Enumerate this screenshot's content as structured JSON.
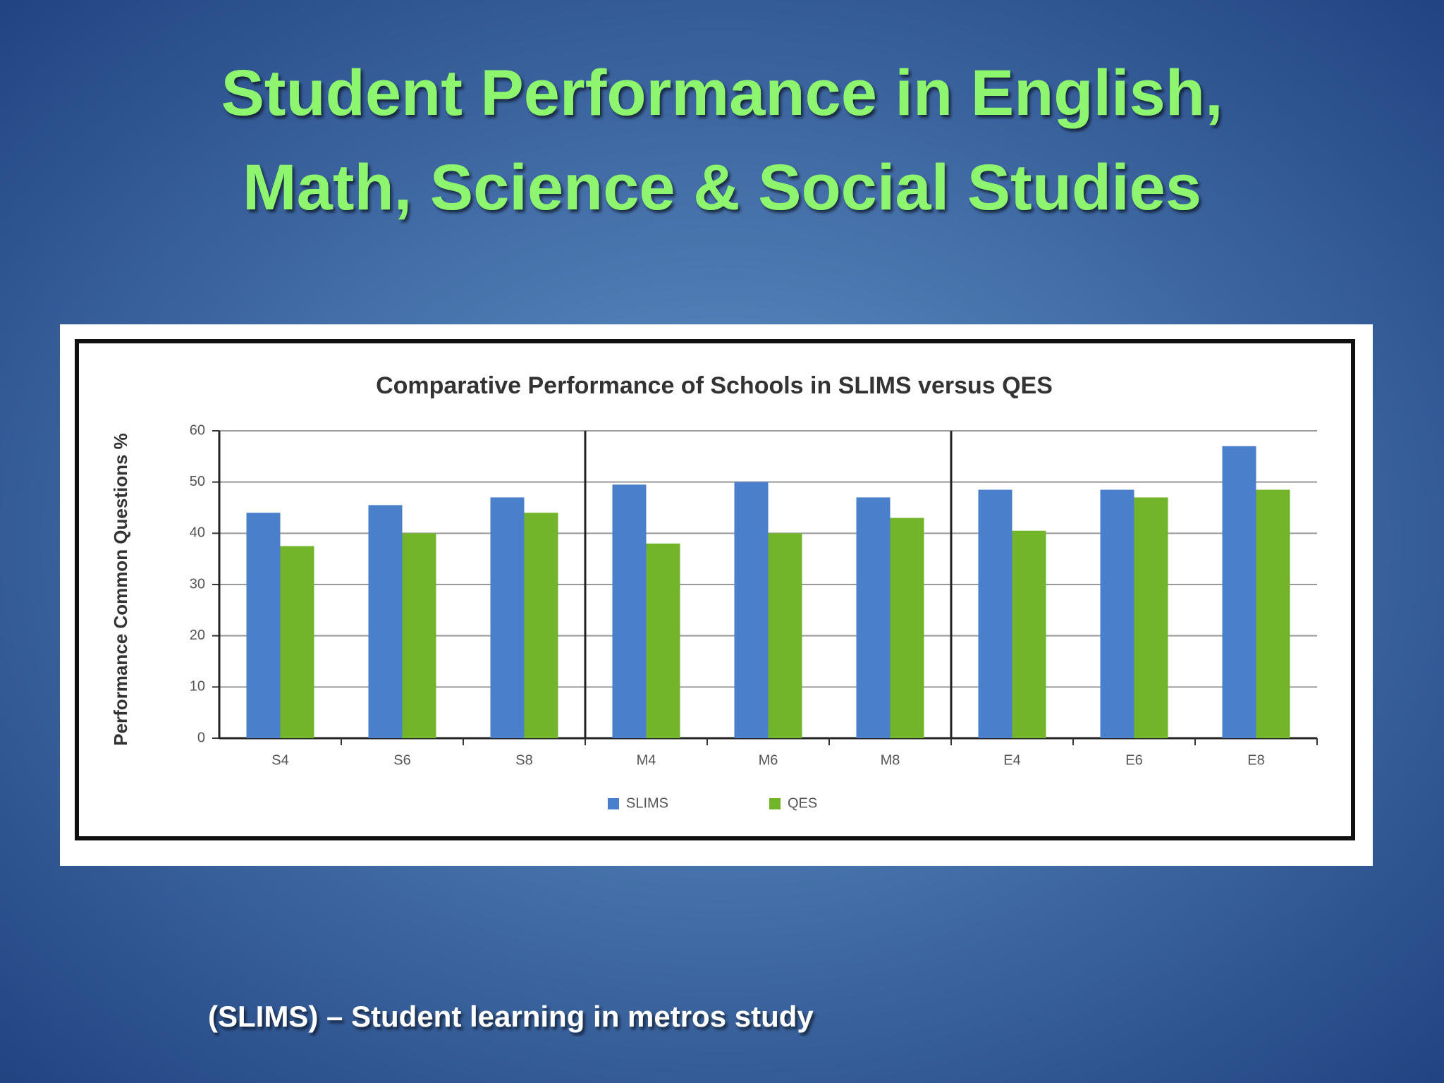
{
  "slide": {
    "title_lines": [
      "Student Performance in English,",
      "Math, Science & Social Studies"
    ],
    "footnote": "(SLIMS) – Student learning in metros study"
  },
  "chart_data": {
    "type": "bar",
    "title": "Comparative Performance of Schools in SLIMS versus QES",
    "y_label": "Performance Common Questions %",
    "categories": [
      "S4",
      "S6",
      "S8",
      "M4",
      "M6",
      "M8",
      "E4",
      "E6",
      "E8"
    ],
    "series": [
      {
        "name": "SLIMS",
        "color": "#4a7fcb",
        "values": [
          44,
          45.5,
          47,
          49.5,
          50,
          47,
          48.5,
          48.5,
          57
        ]
      },
      {
        "name": "QES",
        "color": "#72b52a",
        "values": [
          37.5,
          40,
          44,
          38,
          40,
          43,
          40.5,
          47,
          48.5
        ]
      }
    ],
    "ylim": [
      0,
      60
    ],
    "yticks": [
      0,
      10,
      20,
      30,
      40,
      50,
      60
    ],
    "grid": true,
    "legend": "bottom"
  }
}
